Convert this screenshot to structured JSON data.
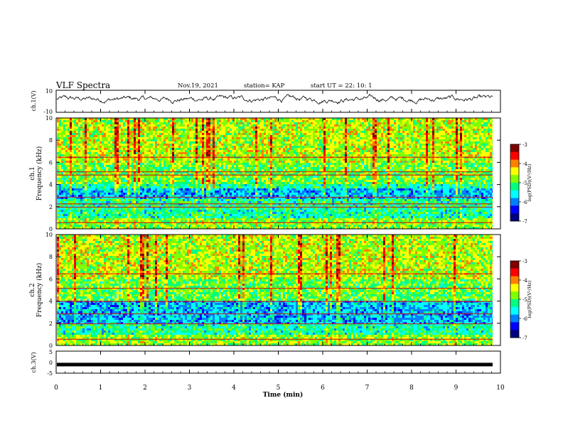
{
  "header": {
    "title": "VLF Spectra",
    "date": "Nov.19, 2021",
    "station": "station= KAP",
    "start": "start  UT  =   22: 10: 1"
  },
  "colors": {
    "background": "#ffffff",
    "trace": "#000000",
    "colormap": [
      "#000080",
      "#0000ff",
      "#0080ff",
      "#00ffff",
      "#00ff80",
      "#80ff00",
      "#ffff00",
      "#ff8000",
      "#ff0000",
      "#800000"
    ]
  },
  "chart_data": [
    {
      "type": "line",
      "panel": "ch1-waveform",
      "ylabel": "ch.1(V)",
      "ylim": [
        -10,
        10
      ],
      "y_ticks": [
        "10",
        "-10"
      ],
      "description_values": {
        "mean": 2,
        "swing": 6
      }
    },
    {
      "type": "heatmap",
      "panel": "ch1-spectrogram",
      "ylabel_top": "ch.1",
      "ylabel": "Frequency (kHz)",
      "ylim": [
        0,
        10
      ],
      "y_ticks": [
        "0",
        "2",
        "4",
        "6",
        "8",
        "10"
      ],
      "colorbar": {
        "label": "log(PSD)(V²/Hz)",
        "range": [
          -7,
          -3
        ],
        "ticks": [
          "-3",
          "-4",
          "-5",
          "-6",
          "-7"
        ]
      },
      "bands_khz": [
        6.5,
        5.2,
        4.9,
        2.9,
        2.3,
        2.0,
        0.6
      ],
      "low_power_band_khz": [
        2.6,
        3.6
      ]
    },
    {
      "type": "heatmap",
      "panel": "ch2-spectrogram",
      "ylabel_top": "ch.2",
      "ylabel": "Frequency (kHz)",
      "ylim": [
        0,
        10
      ],
      "y_ticks": [
        "0",
        "2",
        "4",
        "6",
        "8",
        "10"
      ],
      "colorbar": {
        "label": "log(PSD)(V²/Hz)",
        "range": [
          -7,
          -3
        ],
        "ticks": [
          "-3",
          "-4",
          "-5",
          "-6",
          "-7"
        ]
      },
      "bands_khz": [
        6.5,
        5.2,
        4.0,
        2.9,
        2.0,
        0.6
      ],
      "low_power_band_khz": [
        2.0,
        4.0
      ]
    },
    {
      "type": "line",
      "panel": "ch3-waveform",
      "ylabel": "ch.3(V)",
      "ylim": [
        -5,
        5
      ],
      "y_ticks": [
        "5",
        "0",
        "-5"
      ],
      "level": -1.1,
      "xlabel": "Time  (min)",
      "x_ticks": [
        "0",
        "1",
        "2",
        "3",
        "4",
        "5",
        "6",
        "7",
        "8",
        "9",
        "10"
      ],
      "xlim": [
        0,
        10
      ]
    }
  ]
}
